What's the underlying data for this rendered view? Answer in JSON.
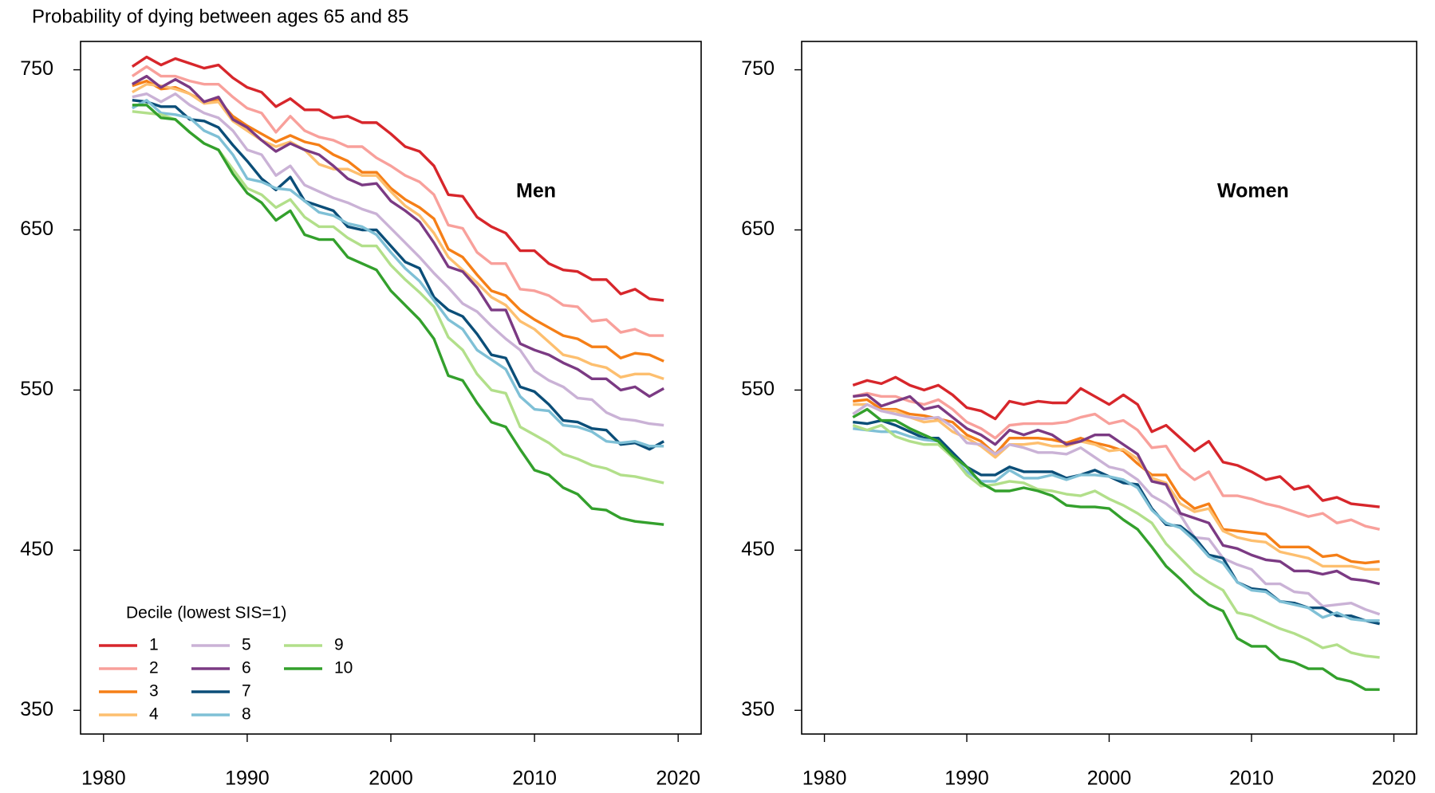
{
  "title": "Probability of dying between ages 65 and 85",
  "chart_data": [
    {
      "type": "line",
      "label": "Men",
      "legend": "bottomleft",
      "legend_title": "Decile (lowest SIS=1)",
      "xlim": [
        1978.4,
        2021.6
      ],
      "ylim": [
        335.2,
        767.7
      ],
      "xticks": [
        1980,
        1990,
        2000,
        2010,
        2020
      ],
      "yticks": [
        350,
        450,
        550,
        650,
        750
      ],
      "x": [
        1982,
        1983,
        1984,
        1985,
        1986,
        1987,
        1988,
        1989,
        1990,
        1991,
        1992,
        1993,
        1994,
        1995,
        1996,
        1997,
        1998,
        1999,
        2000,
        2001,
        2002,
        2003,
        2004,
        2005,
        2006,
        2007,
        2008,
        2009,
        2010,
        2011,
        2012,
        2013,
        2014,
        2015,
        2016,
        2017,
        2018,
        2019
      ],
      "series": [
        {
          "name": "1",
          "color": "#d7262b",
          "values": [
            752,
            758,
            753,
            757,
            754,
            751,
            753,
            745,
            739,
            736,
            727,
            732,
            725,
            725,
            720,
            721,
            717,
            717,
            710,
            702,
            699,
            690,
            672,
            671,
            658,
            652,
            648,
            637,
            637,
            629,
            625,
            624,
            619,
            619,
            610,
            613,
            607,
            606
          ]
        },
        {
          "name": "2",
          "color": "#f8a09b",
          "values": [
            746,
            752,
            746,
            746,
            743,
            741,
            741,
            733,
            726,
            723,
            711,
            721,
            712,
            708,
            706,
            702,
            702,
            695,
            690,
            684,
            680,
            672,
            653,
            651,
            636,
            629,
            629,
            613,
            612,
            609,
            603,
            602,
            593,
            594,
            586,
            588,
            584,
            584
          ]
        },
        {
          "name": "3",
          "color": "#f57f17",
          "values": [
            740,
            743,
            738,
            739,
            735,
            730,
            731,
            721,
            715,
            710,
            705,
            709,
            705,
            703,
            697,
            693,
            686,
            686,
            676,
            669,
            664,
            657,
            638,
            633,
            622,
            612,
            609,
            600,
            594,
            589,
            584,
            582,
            577,
            577,
            570,
            573,
            572,
            568
          ]
        },
        {
          "name": "4",
          "color": "#fdbf6f",
          "values": [
            736,
            741,
            740,
            738,
            735,
            729,
            730,
            718,
            712,
            706,
            702,
            705,
            700,
            691,
            688,
            688,
            684,
            684,
            674,
            665,
            659,
            648,
            633,
            625,
            617,
            608,
            603,
            593,
            588,
            580,
            572,
            570,
            566,
            564,
            558,
            560,
            560,
            557
          ]
        },
        {
          "name": "5",
          "color": "#cab2d6",
          "values": [
            733,
            735,
            730,
            735,
            728,
            723,
            720,
            712,
            700,
            697,
            684,
            690,
            678,
            674,
            670,
            667,
            663,
            660,
            651,
            642,
            633,
            623,
            614,
            604,
            599,
            590,
            582,
            575,
            562,
            556,
            552,
            545,
            544,
            536,
            532,
            531,
            529,
            528
          ]
        },
        {
          "name": "6",
          "color": "#7b3a83",
          "values": [
            741,
            746,
            739,
            744,
            739,
            730,
            733,
            719,
            714,
            706,
            699,
            704,
            700,
            697,
            690,
            682,
            678,
            679,
            668,
            662,
            655,
            642,
            627,
            624,
            614,
            600,
            600,
            579,
            575,
            572,
            567,
            563,
            557,
            557,
            550,
            552,
            546,
            551
          ]
        },
        {
          "name": "7",
          "color": "#0b4e78",
          "values": [
            731,
            730,
            727,
            727,
            719,
            718,
            714,
            703,
            693,
            682,
            675,
            683,
            668,
            665,
            662,
            652,
            650,
            650,
            640,
            630,
            626,
            608,
            600,
            596,
            585,
            572,
            570,
            552,
            549,
            541,
            531,
            530,
            526,
            525,
            516,
            517,
            513,
            518
          ]
        },
        {
          "name": "8",
          "color": "#7fc0d6",
          "values": [
            726,
            731,
            723,
            722,
            720,
            712,
            708,
            697,
            682,
            680,
            676,
            675,
            668,
            661,
            659,
            654,
            652,
            647,
            636,
            626,
            618,
            606,
            594,
            588,
            575,
            569,
            563,
            546,
            538,
            537,
            528,
            527,
            524,
            518,
            517,
            518,
            515,
            515
          ]
        },
        {
          "name": "9",
          "color": "#b2df8a",
          "values": [
            724,
            723,
            722,
            719,
            711,
            704,
            700,
            688,
            676,
            672,
            664,
            669,
            658,
            652,
            652,
            645,
            640,
            640,
            628,
            619,
            611,
            602,
            583,
            575,
            560,
            550,
            548,
            527,
            522,
            517,
            510,
            507,
            503,
            501,
            497,
            496,
            494,
            492
          ]
        },
        {
          "name": "10",
          "color": "#33a02c",
          "values": [
            728,
            728,
            720,
            719,
            711,
            704,
            700,
            685,
            673,
            667,
            656,
            662,
            647,
            644,
            644,
            633,
            629,
            625,
            612,
            603,
            594,
            582,
            559,
            556,
            542,
            530,
            527,
            513,
            500,
            497,
            489,
            485,
            476,
            475,
            470,
            468,
            467,
            466
          ]
        }
      ]
    },
    {
      "type": "line",
      "label": "Women",
      "xlim": [
        1978.4,
        2021.6
      ],
      "ylim": [
        335.2,
        767.7
      ],
      "xticks": [
        1980,
        1990,
        2000,
        2010,
        2020
      ],
      "yticks": [
        350,
        450,
        550,
        650,
        750
      ],
      "x": [
        1982,
        1983,
        1984,
        1985,
        1986,
        1987,
        1988,
        1989,
        1990,
        1991,
        1992,
        1993,
        1994,
        1995,
        1996,
        1997,
        1998,
        1999,
        2000,
        2001,
        2002,
        2003,
        2004,
        2005,
        2006,
        2007,
        2008,
        2009,
        2010,
        2011,
        2012,
        2013,
        2014,
        2015,
        2016,
        2017,
        2018,
        2019
      ],
      "series": [
        {
          "color": "#d7262b",
          "values": [
            553,
            556,
            554,
            558,
            553,
            550,
            553,
            547,
            539,
            537,
            532,
            543,
            541,
            543,
            542,
            542,
            551,
            546,
            541,
            547,
            541,
            524,
            528,
            520,
            512,
            518,
            505,
            503,
            499,
            494,
            496,
            488,
            490,
            481,
            483,
            479,
            478,
            477
          ]
        },
        {
          "color": "#f8a09b",
          "values": [
            546,
            548,
            546,
            546,
            543,
            541,
            544,
            538,
            530,
            526,
            520,
            528,
            529,
            529,
            529,
            530,
            533,
            535,
            529,
            531,
            525,
            514,
            515,
            501,
            494,
            499,
            484,
            484,
            482,
            479,
            477,
            474,
            471,
            473,
            467,
            469,
            465,
            463
          ]
        },
        {
          "color": "#f57f17",
          "values": [
            543,
            544,
            538,
            538,
            535,
            534,
            532,
            530,
            522,
            518,
            510,
            520,
            520,
            520,
            519,
            517,
            520,
            517,
            515,
            512,
            504,
            497,
            497,
            483,
            476,
            479,
            463,
            462,
            461,
            460,
            452,
            452,
            452,
            446,
            447,
            443,
            442,
            443
          ]
        },
        {
          "color": "#fdbf6f",
          "values": [
            541,
            541,
            537,
            537,
            533,
            530,
            531,
            524,
            520,
            515,
            508,
            516,
            516,
            517,
            515,
            515,
            518,
            516,
            512,
            513,
            507,
            495,
            492,
            479,
            474,
            476,
            462,
            458,
            456,
            455,
            449,
            447,
            445,
            440,
            440,
            440,
            438,
            438
          ]
        },
        {
          "color": "#cab2d6",
          "values": [
            535,
            541,
            537,
            535,
            533,
            532,
            533,
            527,
            517,
            516,
            510,
            516,
            514,
            511,
            511,
            510,
            514,
            508,
            502,
            500,
            494,
            484,
            479,
            472,
            458,
            457,
            445,
            441,
            438,
            429,
            429,
            424,
            423,
            415,
            416,
            417,
            413,
            410
          ]
        },
        {
          "color": "#7b3a83",
          "values": [
            546,
            547,
            540,
            543,
            546,
            538,
            540,
            533,
            526,
            522,
            516,
            525,
            522,
            525,
            522,
            516,
            518,
            522,
            522,
            516,
            510,
            493,
            491,
            473,
            470,
            467,
            453,
            451,
            447,
            444,
            443,
            437,
            437,
            435,
            437,
            432,
            431,
            429
          ]
        },
        {
          "color": "#0b4e78",
          "values": [
            530,
            529,
            531,
            528,
            524,
            520,
            520,
            511,
            502,
            497,
            497,
            502,
            499,
            499,
            499,
            495,
            497,
            500,
            496,
            492,
            491,
            476,
            466,
            465,
            458,
            447,
            445,
            430,
            426,
            425,
            418,
            417,
            414,
            414,
            409,
            409,
            406,
            404
          ]
        },
        {
          "color": "#7fc0d6",
          "values": [
            526,
            525,
            524,
            524,
            521,
            519,
            518,
            508,
            499,
            493,
            493,
            500,
            495,
            495,
            497,
            494,
            497,
            497,
            496,
            494,
            489,
            475,
            467,
            464,
            456,
            446,
            442,
            430,
            425,
            424,
            418,
            416,
            414,
            408,
            411,
            407,
            406,
            406
          ]
        },
        {
          "color": "#b2df8a",
          "values": [
            528,
            525,
            528,
            521,
            518,
            516,
            516,
            508,
            497,
            490,
            491,
            493,
            492,
            488,
            487,
            485,
            484,
            487,
            482,
            478,
            473,
            467,
            454,
            445,
            436,
            430,
            425,
            411,
            409,
            405,
            401,
            398,
            394,
            389,
            391,
            386,
            384,
            383
          ]
        },
        {
          "color": "#33a02c",
          "values": [
            533,
            538,
            531,
            531,
            526,
            522,
            518,
            509,
            502,
            492,
            487,
            487,
            489,
            487,
            484,
            478,
            477,
            477,
            476,
            469,
            463,
            452,
            440,
            432,
            423,
            416,
            412,
            395,
            390,
            390,
            382,
            380,
            376,
            376,
            370,
            368,
            363,
            363
          ]
        }
      ]
    }
  ]
}
